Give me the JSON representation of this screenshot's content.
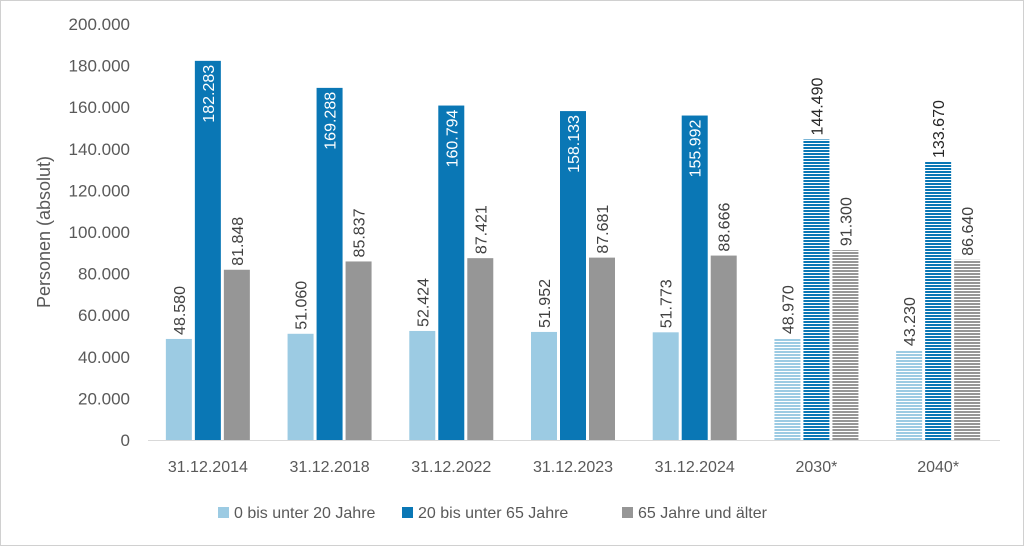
{
  "chart_data": {
    "type": "bar",
    "title": "",
    "xlabel": "",
    "ylabel": "Personen (absolut)",
    "ylim": [
      0,
      200000
    ],
    "yticks": [
      0,
      20000,
      40000,
      60000,
      80000,
      100000,
      120000,
      140000,
      160000,
      180000,
      200000
    ],
    "ytick_labels": [
      "0",
      "20.000",
      "40.000",
      "60.000",
      "80.000",
      "100.000",
      "120.000",
      "140.000",
      "160.000",
      "180.000",
      "200.000"
    ],
    "categories": [
      "31.12.2014",
      "31.12.2018",
      "31.12.2022",
      "31.12.2023",
      "31.12.2024",
      "2030*",
      "2040*"
    ],
    "projected_categories": [
      "2030*",
      "2040*"
    ],
    "grid": false,
    "legend_position": "bottom",
    "series": [
      {
        "name": "0 bis unter 20 Jahre",
        "color": "#9ccbe3",
        "values": [
          48580,
          51060,
          52424,
          51952,
          51773,
          48970,
          43230
        ],
        "labels": [
          "48.580",
          "51.060",
          "52.424",
          "51.952",
          "51.773",
          "48.970",
          "43.230"
        ]
      },
      {
        "name": "20 bis unter 65 Jahre",
        "color": "#0a77b5",
        "values": [
          182283,
          169288,
          160794,
          158133,
          155992,
          144490,
          133670
        ],
        "labels": [
          "182.283",
          "169.288",
          "160.794",
          "158.133",
          "155.992",
          "144.490",
          "133.670"
        ]
      },
      {
        "name": "65 Jahre und älter",
        "color": "#969696",
        "values": [
          81848,
          85837,
          87421,
          87681,
          88666,
          91300,
          86640
        ],
        "labels": [
          "81.848",
          "85.837",
          "87.421",
          "87.681",
          "88.666",
          "91.300",
          "86.640"
        ]
      }
    ]
  }
}
